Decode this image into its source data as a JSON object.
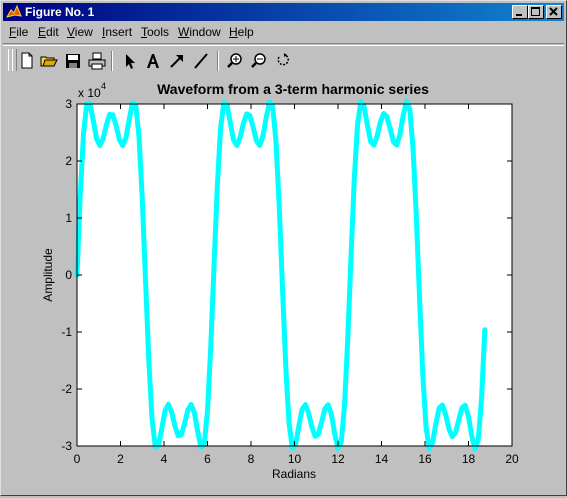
{
  "window": {
    "title": "Figure No. 1",
    "controls": [
      "minimize",
      "maximize",
      "close"
    ]
  },
  "menu": [
    {
      "label": "File",
      "u": "F",
      "rest": "ile"
    },
    {
      "label": "Edit",
      "u": "E",
      "rest": "dit"
    },
    {
      "label": "View",
      "u": "V",
      "rest": "iew"
    },
    {
      "label": "Insert",
      "u": "I",
      "rest": "nsert"
    },
    {
      "label": "Tools",
      "u": "T",
      "rest": "ools"
    },
    {
      "label": "Window",
      "u": "W",
      "rest": "indow"
    },
    {
      "label": "Help",
      "u": "H",
      "rest": "elp"
    }
  ],
  "toolbar": [
    "new-file-icon",
    "open-folder-icon",
    "save-icon",
    "print-icon",
    "select-arrow-icon",
    "insert-text-icon",
    "insert-arrow-icon",
    "insert-line-icon",
    "zoom-in-icon",
    "zoom-out-icon",
    "rotate-3d-icon"
  ],
  "chart_data": {
    "type": "line",
    "title": "Waveform from a 3-term harmonic series",
    "xlabel": "Radians",
    "ylabel": "Amplitude",
    "exponent_label": "x 10",
    "exponent_power": "4",
    "xlim": [
      0,
      20
    ],
    "ylim": [
      -3,
      3
    ],
    "xticks": [
      0,
      2,
      4,
      6,
      8,
      10,
      12,
      14,
      16,
      18,
      20
    ],
    "yticks": [
      -3,
      -2,
      -1,
      0,
      1,
      2,
      3
    ],
    "series": [
      {
        "color": "#00ffff",
        "formula": "y = 32768*(sin(x) + sin(3x)/3 + sin(5x)/5)",
        "x_start": 0,
        "x_end": 18.85,
        "x_step": 0.15
      }
    ]
  }
}
